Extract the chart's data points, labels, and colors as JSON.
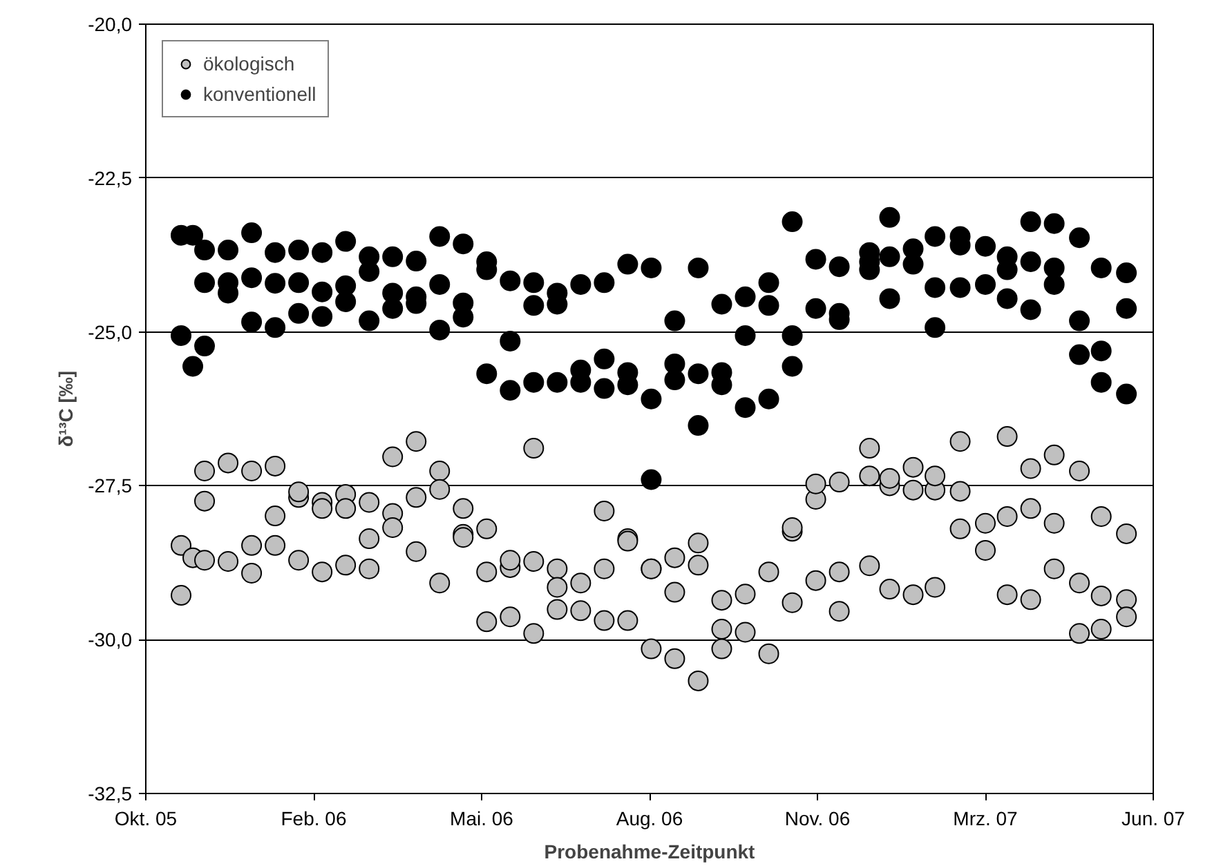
{
  "chart_data": {
    "type": "scatter",
    "xlabel": "Probenahme-Zeitpunkt",
    "ylabel": "δ¹³C [‰]",
    "xlim": [
      "2005-10-25",
      "2007-06-17"
    ],
    "xticks": [
      {
        "value": "2005-10-25",
        "label": "Okt. 05"
      },
      {
        "value": "2006-02-02",
        "label": "Feb. 06"
      },
      {
        "value": "2006-05-13",
        "label": "Mai. 06"
      },
      {
        "value": "2006-08-21",
        "label": "Aug. 06"
      },
      {
        "value": "2006-11-29",
        "label": "Nov. 06"
      },
      {
        "value": "2007-03-09",
        "label": "Mrz. 07"
      },
      {
        "value": "2007-06-17",
        "label": "Jun. 07"
      }
    ],
    "ylim": [
      -32.5,
      -20
    ],
    "yticks": [
      {
        "value": -32.5,
        "label": "-32,5"
      },
      {
        "value": -30,
        "label": "-30,0"
      },
      {
        "value": -27.5,
        "label": "-27,5"
      },
      {
        "value": -25,
        "label": "-25,0"
      },
      {
        "value": -22.5,
        "label": "-22,5"
      },
      {
        "value": -20,
        "label": "-20,0"
      }
    ],
    "grid": "y",
    "legend": "top left",
    "marker": "circle",
    "series": [
      {
        "name": "ökologisch",
        "color": "#c0c0c0",
        "x": [
          "2005-11-15",
          "2005-11-15",
          "2005-11-22",
          "2005-11-29",
          "2005-11-29",
          "2005-11-29",
          "2005-12-13",
          "2005-12-13",
          "2005-12-27",
          "2005-12-27",
          "2005-12-27",
          "2006-01-10",
          "2006-01-10",
          "2006-01-10",
          "2006-01-24",
          "2006-01-24",
          "2006-01-24",
          "2006-02-07",
          "2006-02-07",
          "2006-02-07",
          "2006-02-21",
          "2006-02-21",
          "2006-02-21",
          "2006-03-07",
          "2006-03-07",
          "2006-03-07",
          "2006-03-21",
          "2006-03-21",
          "2006-03-21",
          "2006-04-04",
          "2006-04-04",
          "2006-04-04",
          "2006-04-18",
          "2006-04-18",
          "2006-04-18",
          "2006-05-02",
          "2006-05-02",
          "2006-05-02",
          "2006-05-16",
          "2006-05-16",
          "2006-05-16",
          "2006-05-30",
          "2006-05-30",
          "2006-05-30",
          "2006-06-13",
          "2006-06-13",
          "2006-06-13",
          "2006-06-27",
          "2006-06-27",
          "2006-06-27",
          "2006-07-11",
          "2006-07-11",
          "2006-07-25",
          "2006-07-25",
          "2006-07-25",
          "2006-08-08",
          "2006-08-08",
          "2006-08-08",
          "2006-08-22",
          "2006-08-22",
          "2006-08-22",
          "2006-09-05",
          "2006-09-05",
          "2006-09-05",
          "2006-09-19",
          "2006-09-19",
          "2006-09-19",
          "2006-10-03",
          "2006-10-03",
          "2006-10-03",
          "2006-10-17",
          "2006-10-17",
          "2006-10-31",
          "2006-10-31",
          "2006-11-14",
          "2006-11-14",
          "2006-11-14",
          "2006-11-28",
          "2006-11-28",
          "2006-11-28",
          "2006-12-12",
          "2006-12-12",
          "2006-12-12",
          "2006-12-30",
          "2006-12-30",
          "2006-12-30",
          "2007-01-11",
          "2007-01-11",
          "2007-01-11",
          "2007-01-25",
          "2007-01-25",
          "2007-01-25",
          "2007-02-07",
          "2007-02-07",
          "2007-02-07",
          "2007-02-22",
          "2007-02-22",
          "2007-02-22",
          "2007-03-09",
          "2007-03-09",
          "2007-03-22",
          "2007-03-22",
          "2007-03-22",
          "2007-04-05",
          "2007-04-05",
          "2007-04-05",
          "2007-04-19",
          "2007-04-19",
          "2007-04-19",
          "2007-05-04",
          "2007-05-04",
          "2007-05-04",
          "2007-05-17",
          "2007-05-17",
          "2007-05-17",
          "2007-06-01",
          "2007-06-01",
          "2007-06-01"
        ],
        "values": [
          -28.47,
          -29.28,
          -28.67,
          -27.26,
          -27.75,
          -28.71,
          -27.13,
          -28.73,
          -27.26,
          -28.47,
          -28.92,
          -27.18,
          -27.99,
          -28.47,
          -27.69,
          -27.6,
          -28.71,
          -27.77,
          -27.87,
          -28.9,
          -27.64,
          -27.87,
          -28.79,
          -27.77,
          -28.36,
          -28.85,
          -27.03,
          -27.95,
          -28.18,
          -26.78,
          -27.69,
          -28.57,
          -27.26,
          -27.56,
          -29.08,
          -27.87,
          -28.29,
          -28.34,
          -28.2,
          -28.9,
          -29.71,
          -28.83,
          -28.71,
          -29.63,
          -26.89,
          -28.73,
          -29.9,
          -28.85,
          -29.15,
          -29.51,
          -29.08,
          -29.53,
          -27.91,
          -28.85,
          -29.69,
          -28.36,
          -28.4,
          -29.69,
          -28.85,
          -28.85,
          -30.15,
          -28.67,
          -29.23,
          -30.31,
          -28.43,
          -28.79,
          -30.67,
          -29.36,
          -29.83,
          -30.15,
          -29.26,
          -29.88,
          -28.9,
          -30.23,
          -28.24,
          -28.18,
          -29.4,
          -27.72,
          -27.47,
          -29.04,
          -27.44,
          -28.9,
          -29.54,
          -26.89,
          -27.34,
          -28.8,
          -27.5,
          -27.38,
          -29.18,
          -27.57,
          -27.2,
          -29.27,
          -27.57,
          -27.34,
          -29.15,
          -26.78,
          -27.59,
          -28.2,
          -28.11,
          -28.55,
          -26.7,
          -28.0,
          -29.27,
          -27.22,
          -27.87,
          -29.35,
          -27.0,
          -28.11,
          -28.85,
          -27.26,
          -29.08,
          -29.9,
          -28.0,
          -29.29,
          -29.83,
          -28.28,
          -29.35,
          -29.63
        ]
      },
      {
        "name": "konventionell",
        "color": "#000000",
        "x": [
          "2005-11-15",
          "2005-11-15",
          "2005-11-22",
          "2005-11-22",
          "2005-11-29",
          "2005-11-29",
          "2005-11-29",
          "2005-12-13",
          "2005-12-13",
          "2005-12-13",
          "2005-12-27",
          "2005-12-27",
          "2005-12-27",
          "2006-01-10",
          "2006-01-10",
          "2006-01-10",
          "2006-01-24",
          "2006-01-24",
          "2006-01-24",
          "2006-02-07",
          "2006-02-07",
          "2006-02-07",
          "2006-02-21",
          "2006-02-21",
          "2006-02-21",
          "2006-03-07",
          "2006-03-07",
          "2006-03-07",
          "2006-03-21",
          "2006-03-21",
          "2006-03-21",
          "2006-04-04",
          "2006-04-04",
          "2006-04-04",
          "2006-04-18",
          "2006-04-18",
          "2006-04-18",
          "2006-05-02",
          "2006-05-02",
          "2006-05-02",
          "2006-05-16",
          "2006-05-16",
          "2006-05-16",
          "2006-05-30",
          "2006-05-30",
          "2006-05-30",
          "2006-06-13",
          "2006-06-13",
          "2006-06-13",
          "2006-06-27",
          "2006-06-27",
          "2006-06-27",
          "2006-07-11",
          "2006-07-11",
          "2006-07-11",
          "2006-07-25",
          "2006-07-25",
          "2006-07-25",
          "2006-08-08",
          "2006-08-08",
          "2006-08-08",
          "2006-08-22",
          "2006-08-22",
          "2006-08-22",
          "2006-09-05",
          "2006-09-05",
          "2006-09-05",
          "2006-09-19",
          "2006-09-19",
          "2006-09-19",
          "2006-10-03",
          "2006-10-03",
          "2006-10-03",
          "2006-10-17",
          "2006-10-17",
          "2006-10-17",
          "2006-10-31",
          "2006-10-31",
          "2006-10-31",
          "2006-11-14",
          "2006-11-14",
          "2006-11-14",
          "2006-11-28",
          "2006-11-28",
          "2006-12-12",
          "2006-12-12",
          "2006-12-12",
          "2006-12-30",
          "2006-12-30",
          "2006-12-30",
          "2007-01-11",
          "2007-01-11",
          "2007-01-11",
          "2007-01-25",
          "2007-01-25",
          "2007-02-07",
          "2007-02-07",
          "2007-02-07",
          "2007-02-22",
          "2007-02-22",
          "2007-02-22",
          "2007-03-09",
          "2007-03-09",
          "2007-03-22",
          "2007-03-22",
          "2007-03-22",
          "2007-04-05",
          "2007-04-05",
          "2007-04-05",
          "2007-04-19",
          "2007-04-19",
          "2007-04-19",
          "2007-05-04",
          "2007-05-04",
          "2007-05-04",
          "2007-05-17",
          "2007-05-17",
          "2007-05-17",
          "2007-06-01",
          "2007-06-01",
          "2007-06-01"
        ],
        "values": [
          -23.43,
          -25.06,
          -23.43,
          -25.56,
          -23.67,
          -24.2,
          -25.23,
          -23.67,
          -24.2,
          -24.37,
          -23.39,
          -24.12,
          -24.84,
          -23.71,
          -24.21,
          -24.93,
          -23.67,
          -24.2,
          -24.7,
          -23.71,
          -24.35,
          -24.75,
          -23.53,
          -24.25,
          -24.51,
          -23.78,
          -24.02,
          -24.82,
          -23.78,
          -24.37,
          -24.62,
          -23.85,
          -24.43,
          -24.54,
          -23.45,
          -24.23,
          -24.97,
          -23.57,
          -24.53,
          -24.76,
          -23.86,
          -23.99,
          -25.68,
          -24.17,
          -25.15,
          -25.95,
          -24.2,
          -24.57,
          -25.82,
          -24.37,
          -24.55,
          -25.82,
          -24.23,
          -25.62,
          -25.82,
          -24.2,
          -25.44,
          -25.92,
          -23.9,
          -25.66,
          -25.86,
          -23.96,
          -26.09,
          -27.4,
          -24.82,
          -25.52,
          -25.78,
          -23.96,
          -25.68,
          -26.52,
          -24.55,
          -25.66,
          -25.86,
          -24.43,
          -25.06,
          -26.23,
          -24.2,
          -24.57,
          -26.09,
          -23.21,
          -25.06,
          -25.56,
          -23.82,
          -24.62,
          -23.94,
          -24.7,
          -24.8,
          -23.71,
          -23.86,
          -23.99,
          -23.14,
          -23.78,
          -24.46,
          -23.65,
          -23.9,
          -23.45,
          -24.28,
          -24.93,
          -23.45,
          -23.59,
          -24.28,
          -23.61,
          -24.23,
          -23.78,
          -23.99,
          -24.46,
          -23.21,
          -23.86,
          -24.64,
          -23.24,
          -23.96,
          -24.23,
          -23.47,
          -24.82,
          -25.37,
          -23.96,
          -25.31,
          -25.82,
          -24.04,
          -24.62,
          -26.01
        ]
      }
    ]
  }
}
